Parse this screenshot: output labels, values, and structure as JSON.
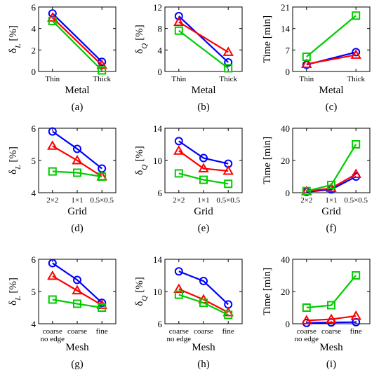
{
  "figure": {
    "series_colors": [
      "#0000ff",
      "#ff0000",
      "#00cc00"
    ],
    "series_markers": [
      "circle",
      "triangle",
      "square"
    ]
  },
  "chart_data": [
    {
      "id": "a",
      "type": "line",
      "caption": "(a)",
      "xlabel": "Metal",
      "ylabel_main": "δ",
      "ylabel_sub": "L",
      "ylabel_unit": "[%]",
      "categories": [
        [
          "Thin"
        ],
        [
          "Thick"
        ]
      ],
      "ylim": [
        0,
        6
      ],
      "yticks": [
        0,
        2,
        4,
        6
      ],
      "series": [
        {
          "values": [
            5.4,
            0.9
          ]
        },
        {
          "values": [
            5.0,
            0.6
          ]
        },
        {
          "values": [
            4.7,
            0.1
          ]
        }
      ]
    },
    {
      "id": "b",
      "type": "line",
      "caption": "(b)",
      "xlabel": "Metal",
      "ylabel_main": "δ",
      "ylabel_sub": "Q",
      "ylabel_unit": "[%]",
      "categories": [
        [
          "Thin"
        ],
        [
          "Thick"
        ]
      ],
      "ylim": [
        0,
        12
      ],
      "yticks": [
        0,
        4,
        8,
        12
      ],
      "series": [
        {
          "values": [
            10.3,
            1.7
          ]
        },
        {
          "values": [
            9.2,
            3.6
          ]
        },
        {
          "values": [
            7.6,
            0.6
          ]
        }
      ]
    },
    {
      "id": "c",
      "type": "line",
      "caption": "(c)",
      "xlabel": "Metal",
      "ylabel_main": "Time [min]",
      "ylabel_sub": "",
      "ylabel_unit": "",
      "categories": [
        [
          "Thin"
        ],
        [
          "Thick"
        ]
      ],
      "ylim": [
        0,
        21
      ],
      "yticks": [
        0,
        7,
        14,
        21
      ],
      "series": [
        {
          "values": [
            2.2,
            6.3
          ]
        },
        {
          "values": [
            2.4,
            5.4
          ]
        },
        {
          "values": [
            4.8,
            18.2
          ]
        }
      ]
    },
    {
      "id": "d",
      "type": "line",
      "caption": "(d)",
      "xlabel": "Grid",
      "ylabel_main": "δ",
      "ylabel_sub": "L",
      "ylabel_unit": "[%]",
      "categories": [
        [
          "2×2"
        ],
        [
          "1×1"
        ],
        [
          "0.5×0.5"
        ]
      ],
      "ylim": [
        4,
        6
      ],
      "yticks": [
        4,
        5,
        6
      ],
      "series": [
        {
          "values": [
            5.9,
            5.36,
            4.75
          ]
        },
        {
          "values": [
            5.45,
            5.0,
            4.5
          ]
        },
        {
          "values": [
            4.66,
            4.62,
            4.5
          ]
        }
      ]
    },
    {
      "id": "e",
      "type": "line",
      "caption": "(e)",
      "xlabel": "Grid",
      "ylabel_main": "δ",
      "ylabel_sub": "Q",
      "ylabel_unit": "[%]",
      "categories": [
        [
          "2×2"
        ],
        [
          "1×1"
        ],
        [
          "0.5×0.5"
        ]
      ],
      "ylim": [
        6,
        14
      ],
      "yticks": [
        6,
        10,
        14
      ],
      "series": [
        {
          "values": [
            12.4,
            10.3,
            9.6
          ]
        },
        {
          "values": [
            11.2,
            9.0,
            8.7
          ]
        },
        {
          "values": [
            8.4,
            7.6,
            7.1
          ]
        }
      ]
    },
    {
      "id": "f",
      "type": "line",
      "caption": "(f)",
      "xlabel": "Grid",
      "ylabel_main": "Time [min]",
      "ylabel_sub": "",
      "ylabel_unit": "",
      "categories": [
        [
          "2×2"
        ],
        [
          "1×1"
        ],
        [
          "0.5×0.5"
        ]
      ],
      "ylim": [
        0,
        40
      ],
      "yticks": [
        0,
        20,
        40
      ],
      "series": [
        {
          "values": [
            0.5,
            2.0,
            10.0
          ]
        },
        {
          "values": [
            0.8,
            2.8,
            11.5
          ]
        },
        {
          "values": [
            1.0,
            4.8,
            30.0
          ]
        }
      ]
    },
    {
      "id": "g",
      "type": "line",
      "caption": "(g)",
      "xlabel": "Mesh",
      "ylabel_main": "δ",
      "ylabel_sub": "L",
      "ylabel_unit": "[%]",
      "categories": [
        [
          "coarse",
          "no edge"
        ],
        [
          "coarse"
        ],
        [
          "fine"
        ]
      ],
      "ylim": [
        4,
        6
      ],
      "yticks": [
        4,
        5,
        6
      ],
      "series": [
        {
          "values": [
            5.88,
            5.36,
            4.65
          ]
        },
        {
          "values": [
            5.48,
            5.03,
            4.58
          ]
        },
        {
          "values": [
            4.75,
            4.62,
            4.5
          ]
        }
      ]
    },
    {
      "id": "h",
      "type": "line",
      "caption": "(h)",
      "xlabel": "Mesh",
      "ylabel_main": "δ",
      "ylabel_sub": "Q",
      "ylabel_unit": "[%]",
      "categories": [
        [
          "coarse",
          "no edge"
        ],
        [
          "coarse"
        ],
        [
          "fine"
        ]
      ],
      "ylim": [
        6,
        14
      ],
      "yticks": [
        6,
        10,
        14
      ],
      "series": [
        {
          "values": [
            12.5,
            11.3,
            8.4
          ]
        },
        {
          "values": [
            10.3,
            9.0,
            7.4
          ]
        },
        {
          "values": [
            9.6,
            8.6,
            7.1
          ]
        }
      ]
    },
    {
      "id": "i",
      "type": "line",
      "caption": "(i)",
      "xlabel": "Mesh",
      "ylabel_main": "Time [min]",
      "ylabel_sub": "",
      "ylabel_unit": "",
      "categories": [
        [
          "coarse",
          "no edge"
        ],
        [
          "coarse"
        ],
        [
          "fine"
        ]
      ],
      "ylim": [
        0,
        40
      ],
      "yticks": [
        0,
        20,
        40
      ],
      "series": [
        {
          "values": [
            0.5,
            0.8,
            1.0
          ]
        },
        {
          "values": [
            2.0,
            2.8,
            4.8
          ]
        },
        {
          "values": [
            10.0,
            11.5,
            30.0
          ]
        }
      ]
    }
  ]
}
